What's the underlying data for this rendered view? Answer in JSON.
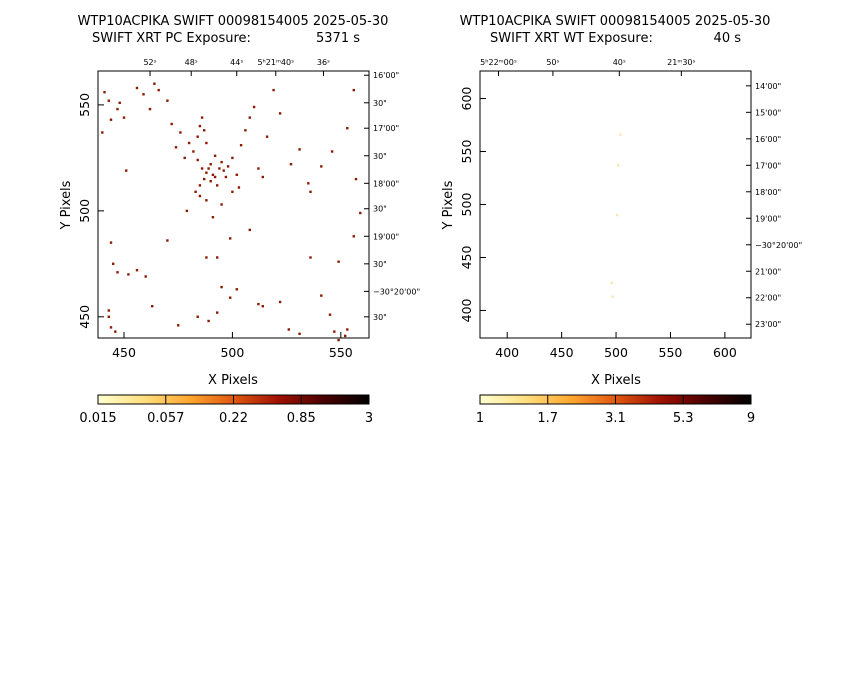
{
  "panels": [
    {
      "title1": "WTP10ACPIKA SWIFT 00098154005 2025-05-30",
      "title2_left": "SWIFT XRT PC Exposure:",
      "title2_right": "5371 s",
      "xlabel": "X Pixels",
      "ylabel": "Y Pixels",
      "xlim": [
        438,
        563
      ],
      "ylim": [
        440,
        566
      ],
      "xticks": [
        "450",
        "500",
        "550"
      ],
      "xtick_values": [
        450,
        500,
        550
      ],
      "yticks": [
        "450",
        "500",
        "550"
      ],
      "ytick_values": [
        450,
        500,
        550
      ],
      "ra_labels": [
        "52ˢ",
        "48ˢ",
        "44ˢ",
        "5ʰ21ᵐ40ˢ",
        "36ˢ"
      ],
      "ra_values": [
        462,
        481,
        502,
        520,
        542
      ],
      "dec_labels": [
        "16'00\"",
        "30\"",
        "17'00\"",
        "30\"",
        "18'00\"",
        "30\"",
        "19'00\"",
        "30\"",
        "−30°20'00\"",
        "30\""
      ],
      "dec_values": [
        564,
        551,
        539,
        526,
        513,
        501,
        488,
        475,
        462,
        450
      ],
      "colorbar_ticks": [
        "0.015",
        "0.057",
        "0.22",
        "0.85",
        "3"
      ],
      "colorbar_colors": [
        "#ffffd0",
        "#ffe080",
        "#ffa830",
        "#e05810",
        "#a01000",
        "#4a0000",
        "#000000"
      ],
      "pixel_color": "#8b1a00",
      "events": [
        [
          441,
          556
        ],
        [
          440,
          537
        ],
        [
          443,
          552
        ],
        [
          444,
          543
        ],
        [
          447,
          548
        ],
        [
          448,
          551
        ],
        [
          451,
          519
        ],
        [
          450,
          544
        ],
        [
          456,
          558
        ],
        [
          459,
          555
        ],
        [
          462,
          548
        ],
        [
          464,
          560
        ],
        [
          466,
          557
        ],
        [
          470,
          552
        ],
        [
          472,
          541
        ],
        [
          474,
          530
        ],
        [
          476,
          537
        ],
        [
          478,
          525
        ],
        [
          480,
          532
        ],
        [
          482,
          528
        ],
        [
          484,
          535
        ],
        [
          485,
          540
        ],
        [
          486,
          544
        ],
        [
          487,
          538
        ],
        [
          488,
          532
        ],
        [
          489,
          520
        ],
        [
          490,
          522
        ],
        [
          491,
          517
        ],
        [
          492,
          516
        ],
        [
          490,
          514
        ],
        [
          488,
          518
        ],
        [
          487,
          515
        ],
        [
          486,
          520
        ],
        [
          485,
          512
        ],
        [
          484,
          524
        ],
        [
          483,
          509
        ],
        [
          494,
          520
        ],
        [
          495,
          523
        ],
        [
          496,
          519
        ],
        [
          497,
          516
        ],
        [
          493,
          512
        ],
        [
          492,
          526
        ],
        [
          498,
          521
        ],
        [
          500,
          525
        ],
        [
          502,
          517
        ],
        [
          504,
          531
        ],
        [
          506,
          538
        ],
        [
          508,
          544
        ],
        [
          510,
          549
        ],
        [
          512,
          520
        ],
        [
          514,
          516
        ],
        [
          516,
          535
        ],
        [
          519,
          557
        ],
        [
          522,
          546
        ],
        [
          527,
          522
        ],
        [
          531,
          529
        ],
        [
          535,
          513
        ],
        [
          536,
          509
        ],
        [
          541,
          521
        ],
        [
          546,
          528
        ],
        [
          553,
          539
        ],
        [
          556,
          557
        ],
        [
          557,
          515
        ],
        [
          559,
          499
        ],
        [
          444,
          485
        ],
        [
          445,
          475
        ],
        [
          447,
          471
        ],
        [
          452,
          470
        ],
        [
          456,
          472
        ],
        [
          460,
          469
        ],
        [
          470,
          486
        ],
        [
          479,
          500
        ],
        [
          485,
          507
        ],
        [
          488,
          505
        ],
        [
          491,
          497
        ],
        [
          495,
          503
        ],
        [
          500,
          509
        ],
        [
          503,
          511
        ],
        [
          488,
          478
        ],
        [
          493,
          478
        ],
        [
          495,
          464
        ],
        [
          499,
          459
        ],
        [
          502,
          463
        ],
        [
          489,
          448
        ],
        [
          493,
          452
        ],
        [
          484,
          450
        ],
        [
          475,
          446
        ],
        [
          463,
          455
        ],
        [
          443,
          453
        ],
        [
          443,
          450
        ],
        [
          444,
          445
        ],
        [
          446,
          443
        ],
        [
          512,
          456
        ],
        [
          514,
          455
        ],
        [
          522,
          457
        ],
        [
          526,
          444
        ],
        [
          531,
          442
        ],
        [
          541,
          460
        ],
        [
          545,
          451
        ],
        [
          547,
          443
        ],
        [
          549,
          439
        ],
        [
          552,
          441
        ],
        [
          553,
          444
        ],
        [
          549,
          476
        ],
        [
          556,
          488
        ],
        [
          536,
          478
        ],
        [
          508,
          491
        ],
        [
          499,
          487
        ]
      ]
    },
    {
      "title1": "WTP10ACPIKA SWIFT 00098154005 2025-05-30",
      "title2_left": "SWIFT XRT WT Exposure:",
      "title2_right": "40 s",
      "xlabel": "X Pixels",
      "ylabel": "Y Pixels",
      "xlim": [
        375,
        624
      ],
      "ylim": [
        374,
        626
      ],
      "xticks": [
        "400",
        "450",
        "500",
        "550",
        "600"
      ],
      "xtick_values": [
        400,
        450,
        500,
        550,
        600
      ],
      "yticks": [
        "400",
        "450",
        "500",
        "550",
        "600"
      ],
      "ytick_values": [
        400,
        450,
        500,
        550,
        600
      ],
      "ra_labels": [
        "5ʰ22ᵐ00ˢ",
        "50ˢ",
        "40ˢ",
        "21ᵐ30ˢ"
      ],
      "ra_values": [
        392,
        442,
        503,
        560
      ],
      "dec_labels": [
        "14'00\"",
        "15'00\"",
        "16'00\"",
        "17'00\"",
        "18'00\"",
        "19'00\"",
        "−30°20'00\"",
        "21'00\"",
        "22'00\"",
        "23'00\""
      ],
      "dec_values": [
        612,
        587,
        562,
        537,
        512,
        487,
        462,
        437,
        412,
        387
      ],
      "colorbar_ticks": [
        "1",
        "1.7",
        "3.1",
        "5.3",
        "9"
      ],
      "colorbar_colors": [
        "#ffffd0",
        "#ffe080",
        "#ffa830",
        "#e05810",
        "#a01000",
        "#4a0000",
        "#000000"
      ],
      "pixel_color": "#f8e8b0",
      "events": [
        [
          504,
          566
        ],
        [
          502,
          537
        ],
        [
          501,
          490
        ],
        [
          496,
          426
        ],
        [
          497,
          413
        ]
      ]
    }
  ]
}
